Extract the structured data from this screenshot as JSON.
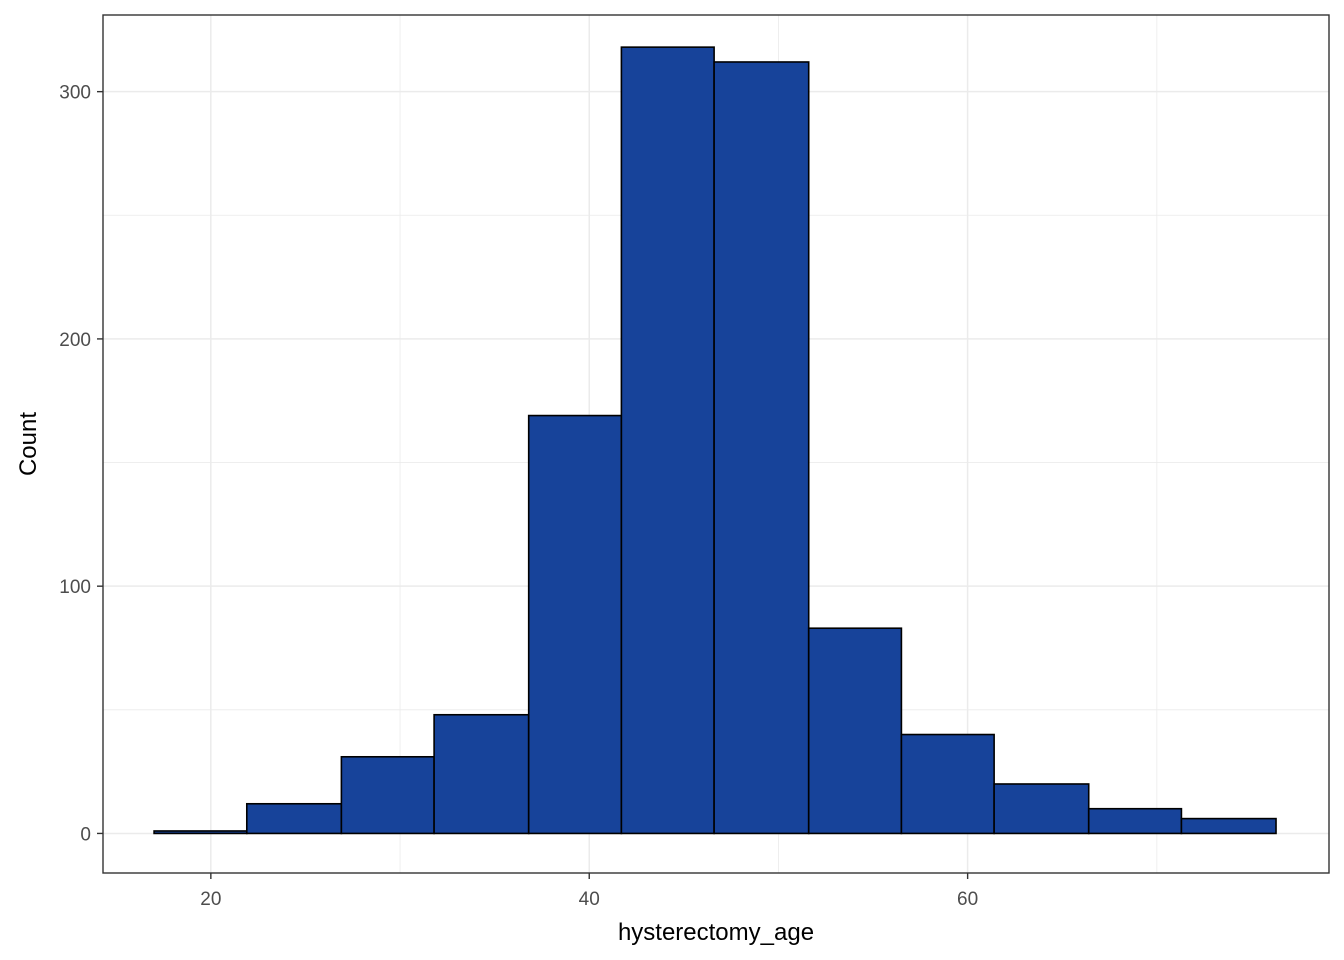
{
  "chart_data": {
    "type": "bar",
    "subtype": "histogram",
    "xlabel": "hysterectomy_age",
    "ylabel": "Count",
    "xlim": [
      14.3,
      79.1
    ],
    "ylim": [
      -16,
      331
    ],
    "x_ticks_major": [
      20,
      40,
      60
    ],
    "x_ticks_minor": [
      30,
      50,
      70
    ],
    "y_ticks_major": [
      0,
      100,
      200,
      300
    ],
    "y_ticks_minor": [
      50,
      150,
      250
    ],
    "grid": true,
    "legend": "none",
    "bins": [
      {
        "x0": 17.0,
        "x1": 21.9,
        "count": 1
      },
      {
        "x0": 21.9,
        "x1": 26.9,
        "count": 12
      },
      {
        "x0": 26.9,
        "x1": 31.8,
        "count": 31
      },
      {
        "x0": 31.8,
        "x1": 36.8,
        "count": 48
      },
      {
        "x0": 36.8,
        "x1": 41.7,
        "count": 169
      },
      {
        "x0": 41.7,
        "x1": 46.6,
        "count": 318
      },
      {
        "x0": 46.6,
        "x1": 51.6,
        "count": 312
      },
      {
        "x0": 51.6,
        "x1": 56.5,
        "count": 83
      },
      {
        "x0": 56.5,
        "x1": 61.4,
        "count": 40
      },
      {
        "x0": 61.4,
        "x1": 66.4,
        "count": 20
      },
      {
        "x0": 66.4,
        "x1": 71.3,
        "count": 10
      },
      {
        "x0": 71.3,
        "x1": 76.3,
        "count": 6
      }
    ],
    "colors": {
      "fill": "#17439a",
      "outline": "#000000",
      "grid": "#ebebeb",
      "panel_border": "#333333",
      "tick_text": "#4d4d4d"
    }
  }
}
